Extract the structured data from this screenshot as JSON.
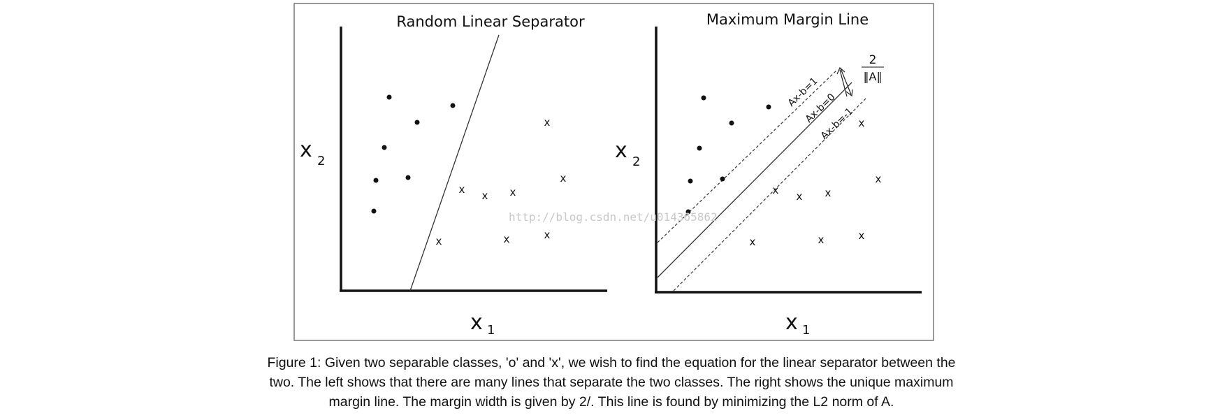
{
  "left_panel": {
    "title": "Random Linear Separator",
    "x_axis_label": "x",
    "x_axis_subscript": "1",
    "y_axis_label": "x",
    "y_axis_subscript": "2",
    "class_o_marker": "•",
    "class_x_marker": "x"
  },
  "right_panel": {
    "title": "Maximum Margin Line",
    "x_axis_label": "x",
    "x_axis_subscript": "1",
    "y_axis_label": "x",
    "y_axis_subscript": "2",
    "upper_margin_label": "Ax-b=1",
    "center_line_label": "Ax-b=0",
    "lower_margin_label": "Ax-b=-1",
    "margin_numerator": "2",
    "margin_denominator": "‖A‖"
  },
  "watermark": "http://blog.csdn.net/u014365862",
  "caption": {
    "line1": "Figure 1: Given two separable classes, 'o' and 'x', we wish to find the equation for the linear separator between the",
    "line2": "two. The left shows that there are many lines that separate the two classes. The right shows the unique maximum",
    "line3": "margin line. The margin width is given by 2/. This line is found by minimizing the L2 norm of A."
  },
  "colors": {
    "ink": "#111111",
    "frame": "#555555",
    "watermark": "#c8c8c8"
  }
}
